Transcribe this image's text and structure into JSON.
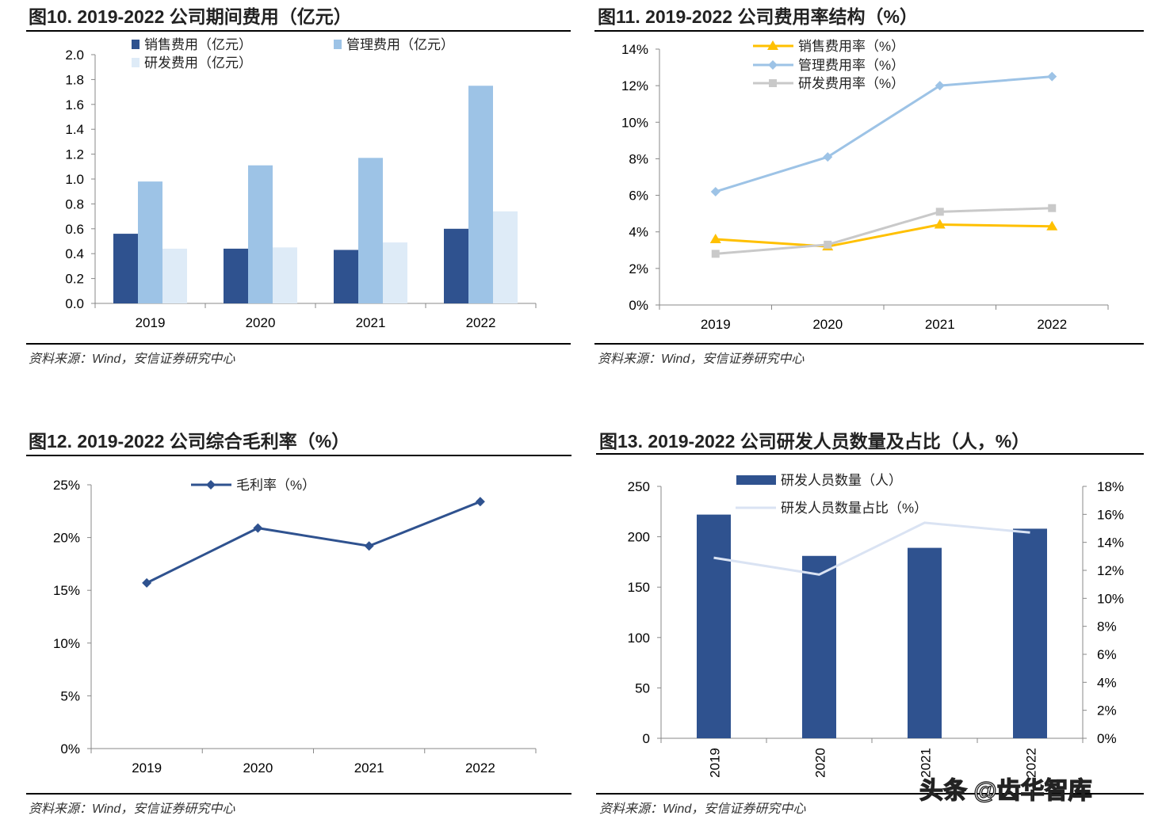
{
  "watermark": "头条 @齿华智库",
  "chart_data": [
    {
      "type": "bar",
      "title": "图10. 2019-2022 公司期间费用（亿元）",
      "source": "资料来源：Wind，安信证券研究中心",
      "categories": [
        "2019",
        "2020",
        "2021",
        "2022"
      ],
      "ylim": [
        0,
        2.0
      ],
      "yticks": [
        "0.0",
        "0.2",
        "0.4",
        "0.6",
        "0.8",
        "1.0",
        "1.2",
        "1.4",
        "1.6",
        "1.8",
        "2.0"
      ],
      "legend_position": "top",
      "grid": false,
      "series": [
        {
          "name": "销售费用（亿元）",
          "color": "#2f528f",
          "values": [
            0.56,
            0.44,
            0.43,
            0.6
          ]
        },
        {
          "name": "管理费用（亿元）",
          "color": "#9dc3e6",
          "values": [
            0.98,
            1.11,
            1.17,
            1.75
          ]
        },
        {
          "name": "研发费用（亿元）",
          "color": "#deebf7",
          "values": [
            0.44,
            0.45,
            0.49,
            0.74
          ]
        }
      ]
    },
    {
      "type": "line",
      "title": "图11. 2019-2022 公司费用率结构（%）",
      "source": "资料来源：Wind，安信证券研究中心",
      "categories": [
        "2019",
        "2020",
        "2021",
        "2022"
      ],
      "ylim": [
        0,
        14
      ],
      "yticks": [
        "0%",
        "2%",
        "4%",
        "6%",
        "8%",
        "10%",
        "12%",
        "14%"
      ],
      "legend_position": "top",
      "grid": false,
      "series": [
        {
          "name": "销售费用率（%）",
          "color": "#ffc000",
          "marker": "triangle",
          "values": [
            3.6,
            3.2,
            4.4,
            4.3
          ]
        },
        {
          "name": "管理费用率（%）",
          "color": "#9dc3e6",
          "marker": "diamond",
          "values": [
            6.2,
            8.1,
            12.0,
            12.5
          ]
        },
        {
          "name": "研发费用率（%）",
          "color": "#c9c9c9",
          "marker": "square",
          "values": [
            2.8,
            3.3,
            5.1,
            5.3
          ]
        }
      ]
    },
    {
      "type": "line",
      "title": "图12. 2019-2022 公司综合毛利率（%）",
      "source": "资料来源：Wind，安信证券研究中心",
      "categories": [
        "2019",
        "2020",
        "2021",
        "2022"
      ],
      "ylim": [
        0,
        25
      ],
      "yticks": [
        "0%",
        "5%",
        "10%",
        "15%",
        "20%",
        "25%"
      ],
      "legend_position": "top",
      "grid": false,
      "series": [
        {
          "name": "毛利率（%）",
          "color": "#2f528f",
          "marker": "diamond",
          "values": [
            15.7,
            20.9,
            19.2,
            23.4
          ]
        }
      ]
    },
    {
      "type": "bar",
      "title": "图13. 2019-2022 公司研发人员数量及占比（人，%）",
      "source": "资料来源：Wind，安信证券研究中心",
      "categories": [
        "2019",
        "2020",
        "2021",
        "2022"
      ],
      "ylim": [
        0,
        250
      ],
      "yticks": [
        "0",
        "50",
        "100",
        "150",
        "200",
        "250"
      ],
      "y2lim": [
        0,
        18
      ],
      "y2ticks": [
        "0%",
        "2%",
        "4%",
        "6%",
        "8%",
        "10%",
        "12%",
        "14%",
        "16%",
        "18%"
      ],
      "legend_position": "top",
      "grid": false,
      "series": [
        {
          "name": "研发人员数量（人）",
          "type": "bar",
          "color": "#2f528f",
          "axis": "left",
          "values": [
            222,
            181,
            189,
            208
          ]
        },
        {
          "name": "研发人员数量占比（%）",
          "type": "line",
          "color": "#dae3f3",
          "axis": "right",
          "values": [
            12.9,
            11.7,
            15.4,
            14.7
          ]
        }
      ]
    }
  ]
}
